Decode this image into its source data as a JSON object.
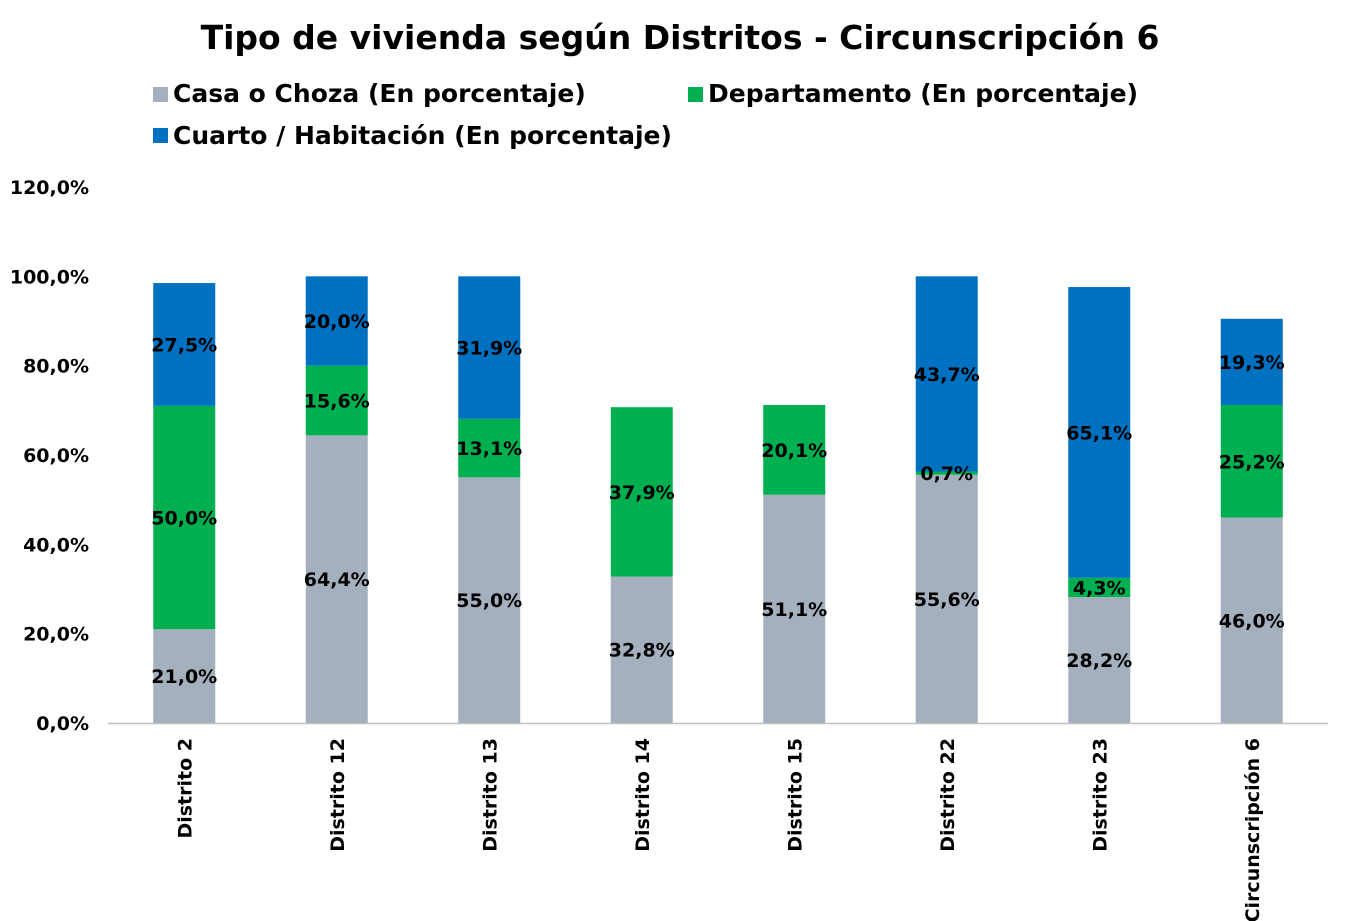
{
  "chart_data": {
    "type": "bar",
    "stacked": true,
    "title": "Tipo de vivienda según Distritos - Circunscripción 6",
    "xlabel": "",
    "ylabel": "",
    "ylim": [
      0,
      120
    ],
    "y_ticks": [
      "0,0%",
      "20,0%",
      "40,0%",
      "60,0%",
      "80,0%",
      "100,0%",
      "120,0%"
    ],
    "y_tick_values": [
      0,
      20,
      40,
      60,
      80,
      100,
      120
    ],
    "grid": false,
    "legend_position": "top",
    "categories": [
      "Distrito 2",
      "Distrito 12",
      "Distrito 13",
      "Distrito 14",
      "Distrito 15",
      "Distrito 22",
      "Distrito 23",
      "Circunscripción 6"
    ],
    "series": [
      {
        "name": "Casa o Choza (En porcentaje)",
        "color": "#a5b0be",
        "values": [
          21.0,
          64.4,
          55.0,
          32.8,
          51.1,
          55.6,
          28.2,
          46.0
        ],
        "labels": [
          "21,0%",
          "64,4%",
          "55,0%",
          "32,8%",
          "51,1%",
          "55,6%",
          "28,2%",
          "46,0%"
        ]
      },
      {
        "name": "Departamento (En porcentaje)",
        "color": "#00b050",
        "values": [
          50.0,
          15.6,
          13.1,
          37.9,
          20.1,
          0.7,
          4.3,
          25.2
        ],
        "labels": [
          "50,0%",
          "15,6%",
          "13,1%",
          "37,9%",
          "20,1%",
          "0,7%",
          "4,3%",
          "25,2%"
        ]
      },
      {
        "name": "Cuarto / Habitación (En porcentaje)",
        "color": "#0070c0",
        "values": [
          27.5,
          20.0,
          31.9,
          0,
          0,
          43.7,
          65.1,
          19.3
        ],
        "labels": [
          "27,5%",
          "20,0%",
          "31,9%",
          "",
          "",
          "43,7%",
          "65,1%",
          "19,3%"
        ]
      }
    ]
  }
}
